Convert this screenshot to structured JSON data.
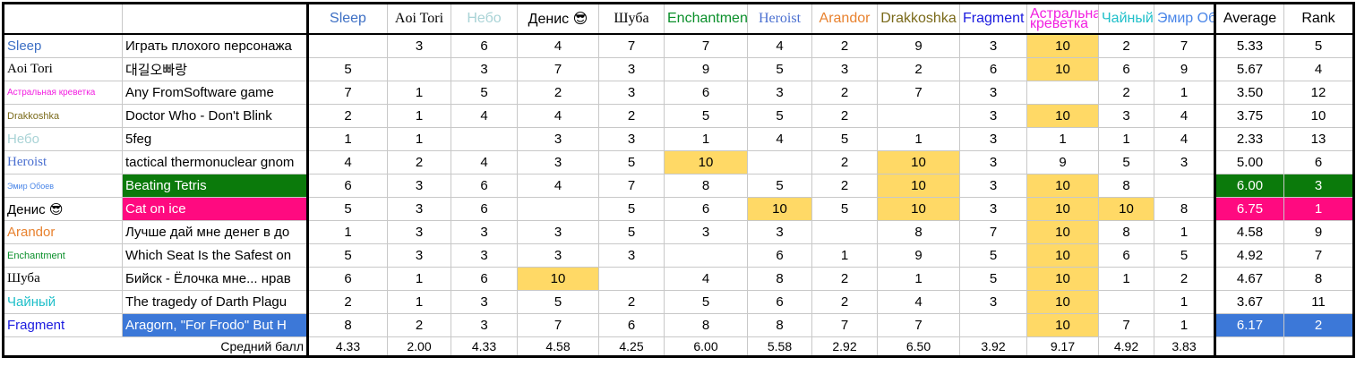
{
  "header": {
    "judges": [
      {
        "name": "Sleep",
        "color": "#3d6fc4"
      },
      {
        "name": "Aoi Tori",
        "color": "#000000"
      },
      {
        "name": "Небо",
        "color": "#a9d3d6"
      },
      {
        "name": "Денис 😎",
        "color": "#000000"
      },
      {
        "name": "Шуба",
        "color": "#000000"
      },
      {
        "name": "Enchantment",
        "color": "#0a8f2a"
      },
      {
        "name": "Heroist",
        "color": "#4a6fd0"
      },
      {
        "name": "Arandor",
        "color": "#e8822f"
      },
      {
        "name": "Drakkoshka",
        "color": "#7a6a1a"
      },
      {
        "name": "Fragment",
        "color": "#1a1adf"
      },
      {
        "name": "Астральная креветка",
        "color": "#f21ee0"
      },
      {
        "name": "Чайный",
        "color": "#1fbfc9"
      },
      {
        "name": "Эмир Обоев",
        "color": "#4a86e8"
      }
    ],
    "average": "Average",
    "rank": "Rank"
  },
  "rows": [
    {
      "name": "Sleep",
      "entry": "Играть плохого персонажа",
      "scores": [
        null,
        3,
        6,
        4,
        7,
        7,
        4,
        2,
        9,
        3,
        10,
        2,
        7
      ],
      "average": "5.33",
      "rank": 5
    },
    {
      "name": "Aoi Tori",
      "entry": "대길오빠랑",
      "scores": [
        5,
        null,
        3,
        7,
        3,
        9,
        5,
        3,
        2,
        6,
        10,
        6,
        9
      ],
      "average": "5.67",
      "rank": 4
    },
    {
      "name": "Астральная креветка",
      "entry": "Any FromSoftware game",
      "scores": [
        7,
        1,
        5,
        2,
        3,
        6,
        3,
        2,
        7,
        3,
        null,
        2,
        1
      ],
      "average": "3.50",
      "rank": 12
    },
    {
      "name": "Drakkoshka",
      "entry": "Doctor Who - Don't Blink",
      "scores": [
        2,
        1,
        4,
        4,
        2,
        5,
        5,
        2,
        null,
        3,
        10,
        3,
        4
      ],
      "average": "3.75",
      "rank": 10
    },
    {
      "name": "Небо",
      "entry": "5feg",
      "scores": [
        1,
        1,
        null,
        3,
        3,
        1,
        4,
        5,
        1,
        3,
        1,
        1,
        4
      ],
      "average": "2.33",
      "rank": 13
    },
    {
      "name": "Heroist",
      "entry": "tactical thermonuclear gnom",
      "scores": [
        4,
        2,
        4,
        3,
        5,
        10,
        null,
        2,
        10,
        3,
        9,
        5,
        3
      ],
      "average": "5.00",
      "rank": 6
    },
    {
      "name": "Эмир Обоев",
      "entry": "Beating Tetris",
      "scores": [
        6,
        3,
        6,
        4,
        7,
        8,
        5,
        2,
        10,
        3,
        10,
        8,
        null
      ],
      "average": "6.00",
      "rank": 3,
      "highlight": "#0b7a0b"
    },
    {
      "name": "Денис 😎",
      "entry": "Cat on ice",
      "scores": [
        5,
        3,
        6,
        null,
        5,
        6,
        10,
        5,
        10,
        3,
        10,
        10,
        8
      ],
      "average": "6.75",
      "rank": 1,
      "highlight": "#ff0a80"
    },
    {
      "name": "Arandor",
      "entry": "Лучше дай мне денег в до",
      "scores": [
        1,
        3,
        3,
        3,
        5,
        3,
        3,
        null,
        8,
        7,
        10,
        8,
        1
      ],
      "average": "4.58",
      "rank": 9
    },
    {
      "name": "Enchantment",
      "entry": "Which Seat Is the Safest on",
      "scores": [
        5,
        3,
        3,
        3,
        3,
        null,
        6,
        1,
        9,
        5,
        10,
        6,
        5
      ],
      "average": "4.92",
      "rank": 7
    },
    {
      "name": "Шуба",
      "entry": "Бийск - Ёлочка мне... нрав",
      "scores": [
        6,
        1,
        6,
        10,
        null,
        4,
        8,
        2,
        1,
        5,
        10,
        1,
        2
      ],
      "average": "4.67",
      "rank": 8
    },
    {
      "name": "Чайный",
      "entry": "The tragedy of Darth Plagu",
      "scores": [
        2,
        1,
        3,
        5,
        2,
        5,
        6,
        2,
        4,
        3,
        10,
        null,
        1
      ],
      "average": "3.67",
      "rank": 11
    },
    {
      "name": "Fragment",
      "entry": "Aragorn, \"For Frodo\" But H",
      "scores": [
        8,
        2,
        3,
        7,
        6,
        8,
        8,
        7,
        7,
        null,
        10,
        7,
        1
      ],
      "average": "6.17",
      "rank": 2,
      "highlight": "#3c78d8"
    }
  ],
  "footer": {
    "label": "Средний балл",
    "averages": [
      "4.33",
      "2.00",
      "4.33",
      "4.58",
      "4.25",
      "6.00",
      "5.58",
      "2.92",
      "6.50",
      "3.92",
      "9.17",
      "4.92",
      "3.83"
    ]
  }
}
